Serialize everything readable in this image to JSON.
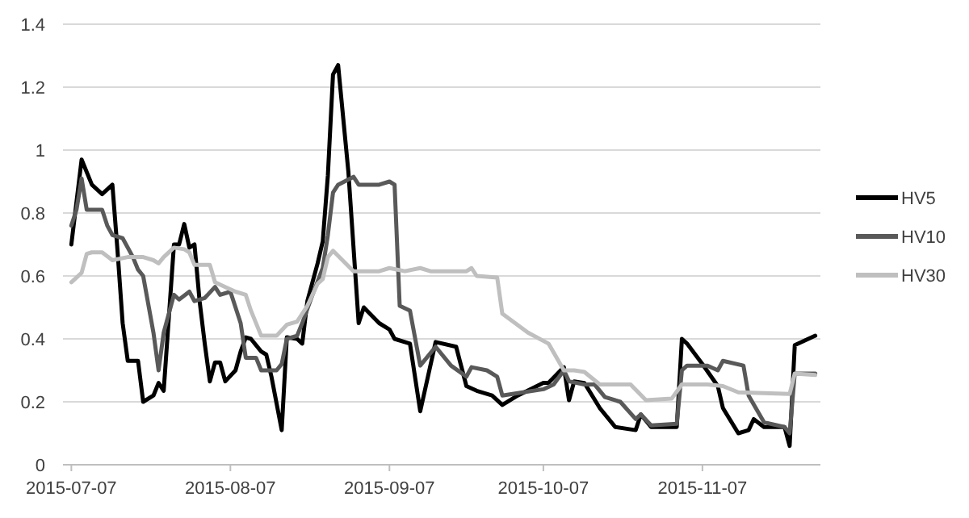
{
  "chart_data": {
    "type": "line",
    "xlim": [
      "2015-07-06",
      "2015-11-30"
    ],
    "xticks": [
      {
        "value": "2015-07-07",
        "label": "2015-07-07"
      },
      {
        "value": "2015-08-07",
        "label": "2015-08-07"
      },
      {
        "value": "2015-09-07",
        "label": "2015-09-07"
      },
      {
        "value": "2015-10-07",
        "label": "2015-10-07"
      },
      {
        "value": "2015-11-07",
        "label": "2015-11-07"
      }
    ],
    "ylim": [
      0,
      1.4
    ],
    "yticks": [
      0,
      0.2,
      0.4,
      0.6,
      0.8,
      1,
      1.2,
      1.4
    ],
    "grid": "y",
    "legend": "right",
    "marker": "none",
    "line_style": "solid",
    "series": [
      {
        "name": "HV5",
        "color": "#000000",
        "x": [
          "2015-07-07",
          "2015-07-09",
          "2015-07-11",
          "2015-07-13",
          "2015-07-15",
          "2015-07-16",
          "2015-07-17",
          "2015-07-18",
          "2015-07-20",
          "2015-07-21",
          "2015-07-23",
          "2015-07-24",
          "2015-07-25",
          "2015-07-27",
          "2015-07-28",
          "2015-07-29",
          "2015-07-30",
          "2015-07-31",
          "2015-08-01",
          "2015-08-02",
          "2015-08-03",
          "2015-08-04",
          "2015-08-05",
          "2015-08-06",
          "2015-08-08",
          "2015-08-09",
          "2015-08-10",
          "2015-08-11",
          "2015-08-13",
          "2015-08-14",
          "2015-08-15",
          "2015-08-17",
          "2015-08-18",
          "2015-08-20",
          "2015-08-21",
          "2015-08-22",
          "2015-08-24",
          "2015-08-25",
          "2015-08-26",
          "2015-08-27",
          "2015-08-28",
          "2015-08-30",
          "2015-09-01",
          "2015-09-02",
          "2015-09-05",
          "2015-09-07",
          "2015-09-08",
          "2015-09-11",
          "2015-09-13",
          "2015-09-16",
          "2015-09-20",
          "2015-09-22",
          "2015-09-24",
          "2015-09-27",
          "2015-09-29",
          "2015-10-02",
          "2015-10-07",
          "2015-10-08",
          "2015-10-11",
          "2015-10-12",
          "2015-10-13",
          "2015-10-15",
          "2015-10-18",
          "2015-10-21",
          "2015-10-25",
          "2015-10-26",
          "2015-10-28",
          "2015-11-02",
          "2015-11-03",
          "2015-11-04",
          "2015-11-07",
          "2015-11-10",
          "2015-11-11",
          "2015-11-14",
          "2015-11-16",
          "2015-11-17",
          "2015-11-19",
          "2015-11-23",
          "2015-11-24",
          "2015-11-25",
          "2015-11-29"
        ],
        "values": [
          0.7,
          0.97,
          0.89,
          0.86,
          0.89,
          0.68,
          0.45,
          0.33,
          0.33,
          0.2,
          0.22,
          0.26,
          0.235,
          0.7,
          0.7,
          0.765,
          0.69,
          0.7,
          0.52,
          0.385,
          0.265,
          0.325,
          0.325,
          0.265,
          0.3,
          0.36,
          0.405,
          0.4,
          0.36,
          0.35,
          0.28,
          0.11,
          0.405,
          0.4,
          0.385,
          0.52,
          0.64,
          0.71,
          0.92,
          1.24,
          1.27,
          0.93,
          0.45,
          0.5,
          0.45,
          0.43,
          0.4,
          0.385,
          0.17,
          0.39,
          0.375,
          0.25,
          0.235,
          0.22,
          0.19,
          0.22,
          0.26,
          0.26,
          0.31,
          0.205,
          0.265,
          0.26,
          0.18,
          0.12,
          0.11,
          0.16,
          0.12,
          0.12,
          0.4,
          0.385,
          0.32,
          0.25,
          0.18,
          0.1,
          0.11,
          0.145,
          0.12,
          0.12,
          0.06,
          0.38,
          0.41
        ]
      },
      {
        "name": "HV10",
        "color": "#595959",
        "x": [
          "2015-07-07",
          "2015-07-08",
          "2015-07-09",
          "2015-07-10",
          "2015-07-13",
          "2015-07-14",
          "2015-07-15",
          "2015-07-17",
          "2015-07-19",
          "2015-07-20",
          "2015-07-21",
          "2015-07-23",
          "2015-07-24",
          "2015-07-25",
          "2015-07-27",
          "2015-07-28",
          "2015-07-30",
          "2015-07-31",
          "2015-08-02",
          "2015-08-04",
          "2015-08-05",
          "2015-08-07",
          "2015-08-09",
          "2015-08-10",
          "2015-08-12",
          "2015-08-13",
          "2015-08-16",
          "2015-08-17",
          "2015-08-18",
          "2015-08-20",
          "2015-08-21",
          "2015-08-23",
          "2015-08-25",
          "2015-08-26",
          "2015-08-27",
          "2015-08-28",
          "2015-08-31",
          "2015-09-01",
          "2015-09-05",
          "2015-09-07",
          "2015-09-08",
          "2015-09-09",
          "2015-09-11",
          "2015-09-13",
          "2015-09-16",
          "2015-09-19",
          "2015-09-22",
          "2015-09-23",
          "2015-09-26",
          "2015-09-28",
          "2015-09-29",
          "2015-10-03",
          "2015-10-07",
          "2015-10-09",
          "2015-10-11",
          "2015-10-12",
          "2015-10-15",
          "2015-10-17",
          "2015-10-19",
          "2015-10-22",
          "2015-10-25",
          "2015-10-26",
          "2015-10-28",
          "2015-11-02",
          "2015-11-03",
          "2015-11-04",
          "2015-11-08",
          "2015-11-10",
          "2015-11-11",
          "2015-11-15",
          "2015-11-16",
          "2015-11-19",
          "2015-11-23",
          "2015-11-24",
          "2015-11-25",
          "2015-11-29"
        ],
        "values": [
          0.76,
          0.81,
          0.91,
          0.81,
          0.81,
          0.76,
          0.73,
          0.72,
          0.66,
          0.62,
          0.6,
          0.42,
          0.3,
          0.42,
          0.54,
          0.525,
          0.55,
          0.52,
          0.53,
          0.565,
          0.54,
          0.55,
          0.45,
          0.34,
          0.34,
          0.3,
          0.3,
          0.32,
          0.4,
          0.41,
          0.45,
          0.54,
          0.625,
          0.73,
          0.865,
          0.89,
          0.915,
          0.89,
          0.89,
          0.9,
          0.89,
          0.505,
          0.49,
          0.315,
          0.375,
          0.315,
          0.28,
          0.31,
          0.3,
          0.28,
          0.22,
          0.23,
          0.24,
          0.255,
          0.3,
          0.265,
          0.255,
          0.255,
          0.215,
          0.2,
          0.145,
          0.16,
          0.125,
          0.13,
          0.3,
          0.315,
          0.315,
          0.3,
          0.33,
          0.315,
          0.22,
          0.135,
          0.12,
          0.1,
          0.29,
          0.29
        ]
      },
      {
        "name": "HV30",
        "color": "#bfbfbf",
        "x": [
          "2015-07-07",
          "2015-07-09",
          "2015-07-10",
          "2015-07-11",
          "2015-07-13",
          "2015-07-15",
          "2015-07-18",
          "2015-07-21",
          "2015-07-23",
          "2015-07-24",
          "2015-07-25",
          "2015-07-27",
          "2015-07-29",
          "2015-07-30",
          "2015-07-31",
          "2015-08-03",
          "2015-08-04",
          "2015-08-06",
          "2015-08-08",
          "2015-08-10",
          "2015-08-11",
          "2015-08-13",
          "2015-08-16",
          "2015-08-18",
          "2015-08-20",
          "2015-08-22",
          "2015-08-24",
          "2015-08-25",
          "2015-08-26",
          "2015-08-27",
          "2015-08-31",
          "2015-09-05",
          "2015-09-07",
          "2015-09-10",
          "2015-09-13",
          "2015-09-15",
          "2015-09-22",
          "2015-09-23",
          "2015-09-24",
          "2015-09-28",
          "2015-09-29",
          "2015-10-04",
          "2015-10-08",
          "2015-10-11",
          "2015-10-13",
          "2015-10-15",
          "2015-10-18",
          "2015-10-24",
          "2015-10-27",
          "2015-11-01",
          "2015-11-03",
          "2015-11-08",
          "2015-11-11",
          "2015-11-14",
          "2015-11-24",
          "2015-11-25",
          "2015-11-29"
        ],
        "values": [
          0.58,
          0.61,
          0.67,
          0.675,
          0.675,
          0.65,
          0.66,
          0.66,
          0.65,
          0.64,
          0.66,
          0.69,
          0.685,
          0.675,
          0.635,
          0.635,
          0.58,
          0.565,
          0.55,
          0.54,
          0.49,
          0.41,
          0.41,
          0.445,
          0.455,
          0.505,
          0.575,
          0.59,
          0.66,
          0.68,
          0.615,
          0.615,
          0.625,
          0.615,
          0.625,
          0.615,
          0.615,
          0.625,
          0.6,
          0.595,
          0.48,
          0.42,
          0.385,
          0.3,
          0.3,
          0.295,
          0.255,
          0.255,
          0.205,
          0.21,
          0.255,
          0.255,
          0.25,
          0.23,
          0.225,
          0.29,
          0.285
        ]
      }
    ]
  }
}
